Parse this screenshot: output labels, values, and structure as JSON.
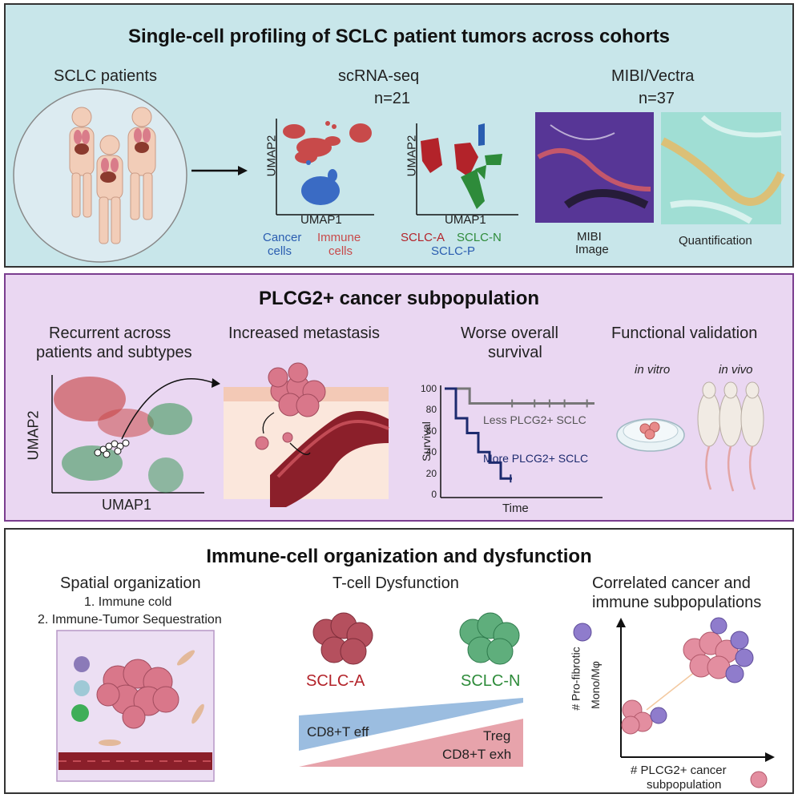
{
  "panel1": {
    "title": "Single-cell profiling of SCLC patient tumors across cohorts",
    "patients_label": "SCLC patients",
    "scrna_label": "scRNA-seq",
    "scrna_n": "n=21",
    "mibi_label": "MIBI/Vectra",
    "mibi_n": "n=37",
    "umap1": "UMAP1",
    "umap2": "UMAP2",
    "cancer_cells_1": "Cancer",
    "cancer_cells_2": "cells",
    "immune_cells_1": "Immune",
    "immune_cells_2": "cells",
    "sclc_a": "SCLC-A",
    "sclc_n": "SCLC-N",
    "sclc_p": "SCLC-P",
    "mibi_image_1": "MIBI",
    "mibi_image_2": "Image",
    "quantification": "Quantification"
  },
  "panel2": {
    "title": "PLCG2+ cancer subpopulation",
    "recurrent_1": "Recurrent across",
    "recurrent_2": "patients and subtypes",
    "metastasis": "Increased metastasis",
    "worse_1": "Worse overall",
    "worse_2": "survival",
    "functional": "Functional validation",
    "in_vitro": "in vitro",
    "in_vivo": "in vivo",
    "umap1": "UMAP1",
    "umap2": "UMAP2",
    "survival_axis": "Survival",
    "time_axis": "Time",
    "less_label": "Less PLCG2+ SCLC",
    "more_label": "More PLCG2+ SCLC",
    "y_ticks": [
      "100",
      "80",
      "60",
      "40",
      "20",
      "0"
    ]
  },
  "panel3": {
    "title": "Immune-cell organization and dysfunction",
    "spatial": "Spatial organization",
    "spatial_1": "1. Immune cold",
    "spatial_2": "2. Immune-Tumor Sequestration",
    "tcell": "T-cell Dysfunction",
    "sclc_a": "SCLC-A",
    "sclc_n": "SCLC-N",
    "cd8_eff": "CD8+T eff",
    "treg": "Treg",
    "cd8_exh": "CD8+T exh",
    "correlated_1": "Correlated cancer and",
    "correlated_2": "immune subpopulations",
    "y_axis_1": "# Pro-fibrotic",
    "y_axis_2": "Mono/Mφ",
    "x_axis_1": "# PLCG2+ cancer",
    "x_axis_2": "subpopulation"
  },
  "colors": {
    "panel1_bg": "#c8e6ea",
    "panel2_bg": "#ead7f2",
    "sclc_a": "#b3232a",
    "sclc_n": "#2e8b3a",
    "sclc_p": "#2a5db0",
    "survival_less": "#777777",
    "survival_more": "#1c2a6e"
  },
  "chart_data": {
    "type": "line",
    "xlabel": "Time",
    "ylabel": "Survival",
    "ylim": [
      0,
      100
    ],
    "series": [
      {
        "name": "Less PLCG2+ SCLC",
        "values": [
          100,
          86,
          86,
          86,
          86,
          86
        ]
      },
      {
        "name": "More PLCG2+ SCLC",
        "values": [
          100,
          72,
          58,
          40,
          30,
          15
        ]
      }
    ]
  }
}
